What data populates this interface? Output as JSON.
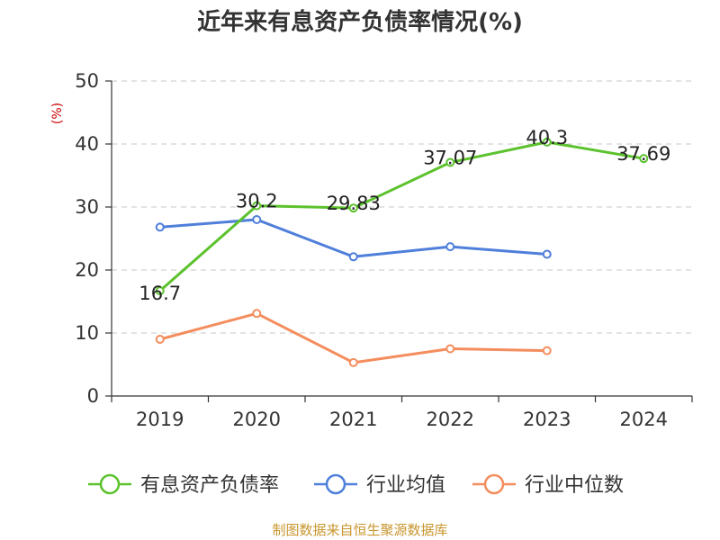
{
  "chart_data": {
    "type": "line",
    "title": "近年来有息资产负债率情况(%)",
    "ylabel": "(%)",
    "xlabel": "",
    "ylim": [
      0,
      50
    ],
    "yticks": [
      0,
      10,
      20,
      30,
      40,
      50
    ],
    "categories": [
      "2019",
      "2020",
      "2021",
      "2022",
      "2023",
      "2024"
    ],
    "grid": true,
    "legend_position": "bottom",
    "series": [
      {
        "name": "有息资产负债率",
        "color": "#5cc22d",
        "values": [
          16.7,
          30.2,
          29.83,
          37.07,
          40.3,
          37.69
        ],
        "labels": [
          "16.7",
          "30.2",
          "29.83",
          "37.07",
          "40.3",
          "37.69"
        ]
      },
      {
        "name": "行业均值",
        "color": "#4f7fda",
        "values": [
          26.8,
          28.0,
          22.1,
          23.7,
          22.5,
          null
        ]
      },
      {
        "name": "行业中位数",
        "color": "#f48d5d",
        "values": [
          9.0,
          13.1,
          5.3,
          7.5,
          7.2,
          null
        ]
      }
    ],
    "source": "制图数据来自恒生聚源数据库",
    "ylabel_color": "#cc0000",
    "source_color": "#c8962e",
    "grid_color": "#c8c8c8",
    "axis_color": "#333333"
  }
}
